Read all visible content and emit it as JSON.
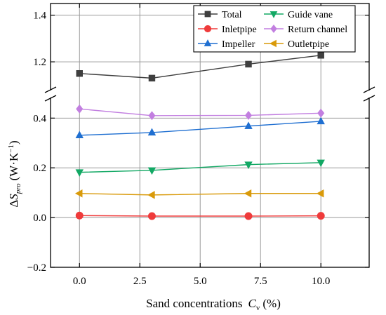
{
  "chart_data": {
    "type": "line",
    "x": [
      0,
      3,
      7,
      10
    ],
    "xlabel": {
      "text": "Sand concentrations",
      "var": "C",
      "sub": "v",
      "unit": "(%)"
    },
    "ylabel": {
      "delta": "Δ",
      "var": "S",
      "sub": "pro",
      "unit": "(W·K",
      "sup": "−1",
      "close": ")"
    },
    "xlim": [
      -1.2,
      12.0
    ],
    "xticks": [
      "0.0",
      "2.5",
      "5.0",
      "7.5",
      "10.0"
    ],
    "xtick_values": [
      0,
      2.5,
      5,
      7.5,
      10
    ],
    "ylim_lower": [
      -0.2,
      0.48
    ],
    "ylim_upper": [
      1.08,
      1.45
    ],
    "yticks_lower": [
      "−0.2",
      "0.0",
      "0.2",
      "0.4"
    ],
    "ytick_values_lower": [
      -0.2,
      0.0,
      0.2,
      0.4
    ],
    "yticks_upper": [
      "1.2",
      "1.4"
    ],
    "ytick_values_upper": [
      1.2,
      1.4
    ],
    "axis_break": true,
    "grid": true,
    "legend_position": "top-right",
    "series": [
      {
        "name": "Total",
        "values": [
          1.15,
          1.13,
          1.19,
          1.228
        ],
        "color": "#3f3f3f",
        "marker": "square"
      },
      {
        "name": "Inletpipe",
        "values": [
          0.008,
          0.006,
          0.006,
          0.007
        ],
        "color": "#ef3b3b",
        "marker": "circle"
      },
      {
        "name": "Impeller",
        "values": [
          0.331,
          0.342,
          0.368,
          0.387
        ],
        "color": "#1f6fd1",
        "marker": "triangle-up"
      },
      {
        "name": "Guide vane",
        "values": [
          0.182,
          0.19,
          0.213,
          0.221
        ],
        "color": "#12a864",
        "marker": "triangle-down"
      },
      {
        "name": "Return channel",
        "values": [
          0.437,
          0.41,
          0.411,
          0.42
        ],
        "color": "#c27fe0",
        "marker": "diamond"
      },
      {
        "name": "Outletpipe",
        "values": [
          0.097,
          0.091,
          0.097,
          0.097
        ],
        "color": "#d99a0a",
        "marker": "triangle-left"
      }
    ]
  }
}
